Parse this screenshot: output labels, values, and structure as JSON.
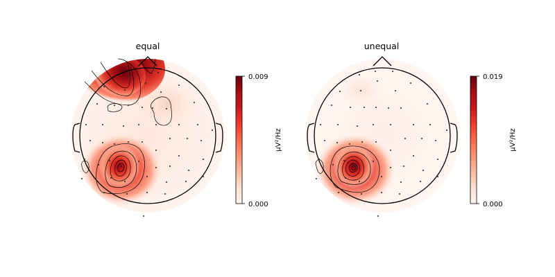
{
  "chart_data": [
    {
      "type": "heatmap",
      "subtype": "scalp-topomap",
      "title": "equal",
      "colorbar": {
        "label": "µV²/Hz",
        "ticks": [
          "0.000",
          "0.009"
        ],
        "range": [
          0.0,
          0.009
        ],
        "colormap": "Reds"
      },
      "hotspots": [
        {
          "region": "left-frontal edge",
          "peak": 0.009
        },
        {
          "region": "left-posterior (parietal)",
          "peak": 0.008
        }
      ]
    },
    {
      "type": "heatmap",
      "subtype": "scalp-topomap",
      "title": "unequal",
      "colorbar": {
        "label": "µV²/Hz",
        "ticks": [
          "0.000",
          "0.019"
        ],
        "range": [
          0.0,
          0.019
        ],
        "colormap": "Reds"
      },
      "hotspots": [
        {
          "region": "left-posterior (parietal)",
          "peak": 0.019
        }
      ]
    }
  ],
  "colors": {
    "low": "#fff5f0",
    "mid": "#f0573e",
    "high": "#67000d"
  }
}
